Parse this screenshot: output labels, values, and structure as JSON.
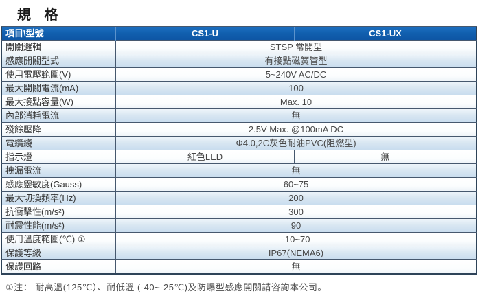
{
  "title": "規 格",
  "table": {
    "header": {
      "item_model": "項目\\型號",
      "model_u": "CS1-U",
      "model_ux": "CS1-UX"
    },
    "rows": [
      {
        "label": "開關邏輯",
        "value": "STSP 常開型"
      },
      {
        "label": "感應開關型式",
        "value": "有接點磁簧管型"
      },
      {
        "label": "使用電壓範圍(V)",
        "value": "5~240V AC/DC"
      },
      {
        "label": "最大開關電流(mA)",
        "value": "100"
      },
      {
        "label": "最大接點容量(W)",
        "value": "Max. 10"
      },
      {
        "label": "內部消耗電流",
        "value": "無"
      },
      {
        "label": "殘餘壓降",
        "value": "2.5V Max. @100mA DC"
      },
      {
        "label": "電纜綫",
        "value": "Φ4.0,2C灰色耐油PVC(阻燃型)"
      },
      {
        "label": "指示燈",
        "value_u": "紅色LED",
        "value_ux": "無"
      },
      {
        "label": "拽漏電流",
        "value": "無"
      },
      {
        "label": "感應靈敏度(Gauss)",
        "value": "60~75"
      },
      {
        "label": "最大切換頻率(Hz)",
        "value": "200"
      },
      {
        "label": "抗衝擊性(m/s²)",
        "value": "300"
      },
      {
        "label": "耐震性能(m/s²)",
        "value": "90"
      },
      {
        "label": "使用溫度範圍(℃) ①",
        "value": "-10~70"
      },
      {
        "label": "保護等級",
        "value": "IP67(NEMA6)"
      },
      {
        "label": "保護回路",
        "value": "無"
      }
    ]
  },
  "footnote": "①注： 耐高溫(125℃）、耐低溫 (-40~-25℃)及防爆型感應開關請咨詢本公司。",
  "colors": {
    "header_bg": "#1160af",
    "header_text": "#ffffff",
    "row_alt_bg": "#c7dcee",
    "row_bg": "#ffffff",
    "border": "#46586e",
    "label_text": "#373737",
    "value_text": "#474747"
  }
}
